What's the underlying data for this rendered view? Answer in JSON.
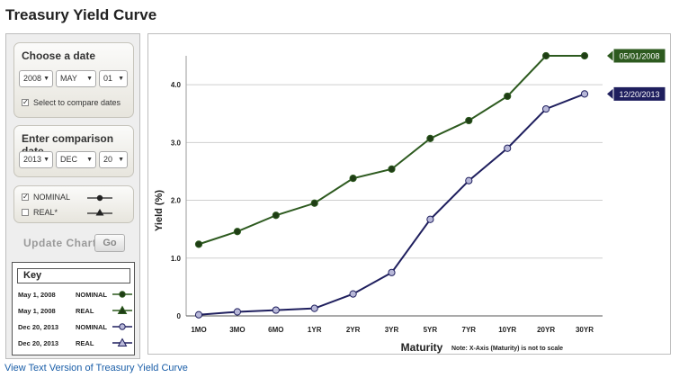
{
  "page": {
    "title": "Treasury Yield Curve",
    "footer_link": "View Text Version of Treasury Yield Curve"
  },
  "date_panel": {
    "title": "Choose a date",
    "year": "2008",
    "month": "MAY",
    "day": "01",
    "compare_checkbox_checked": true,
    "compare_label": "Select to compare dates"
  },
  "comparison_panel": {
    "title": "Enter comparison date",
    "year": "2013",
    "month": "DEC",
    "day": "20"
  },
  "series_panel": {
    "nominal_label": "NOMINAL",
    "nominal_checked": true,
    "real_label": "REAL*",
    "real_checked": false
  },
  "controls": {
    "update_label": "Update Chart",
    "go_label": "Go"
  },
  "key": {
    "title": "Key",
    "rows": [
      {
        "date": "May 1, 2008",
        "type": "NOMINAL",
        "color": "#2d5a1f",
        "marker": "circle",
        "fill": "#1f3d15"
      },
      {
        "date": "May 1, 2008",
        "type": "REAL",
        "color": "#2d5a1f",
        "marker": "triangle",
        "fill": "#1f3d15"
      },
      {
        "date": "Dec 20, 2013",
        "type": "NOMINAL",
        "color": "#1f1f5e",
        "marker": "circle",
        "fill": "#b8b8d8"
      },
      {
        "date": "Dec 20, 2013",
        "type": "REAL",
        "color": "#1f1f5e",
        "marker": "triangle",
        "fill": "#b8b8d8"
      }
    ]
  },
  "colors": {
    "series_green": "#2d5a1f",
    "series_navy": "#1f1f5e",
    "link_blue": "#1a5ea8"
  },
  "chart_data": {
    "type": "line",
    "categories": [
      "1MO",
      "3MO",
      "6MO",
      "1YR",
      "2YR",
      "3YR",
      "5YR",
      "7YR",
      "10YR",
      "20YR",
      "30YR"
    ],
    "series": [
      {
        "name": "05/01/2008",
        "color": "#2d5a1f",
        "marker_fill": "#1f3d15",
        "values": [
          1.24,
          1.46,
          1.74,
          1.95,
          2.38,
          2.54,
          3.07,
          3.38,
          3.8,
          4.5,
          4.5
        ]
      },
      {
        "name": "12/20/2013",
        "color": "#1f1f5e",
        "marker_fill": "#b8b8d8",
        "values": [
          0.02,
          0.07,
          0.1,
          0.13,
          0.38,
          0.75,
          1.67,
          2.34,
          2.9,
          3.58,
          3.84
        ]
      }
    ],
    "yticks": [
      "0",
      "1.0",
      "2.0",
      "3.0",
      "4.0"
    ],
    "ytick_values": [
      0,
      1,
      2,
      3,
      4
    ],
    "ylim": [
      0,
      4.5
    ],
    "ylabel": "Yield (%)",
    "xlabel": "Maturity",
    "note": "Note: X-Axis (Maturity) is not to scale",
    "grid": true
  }
}
